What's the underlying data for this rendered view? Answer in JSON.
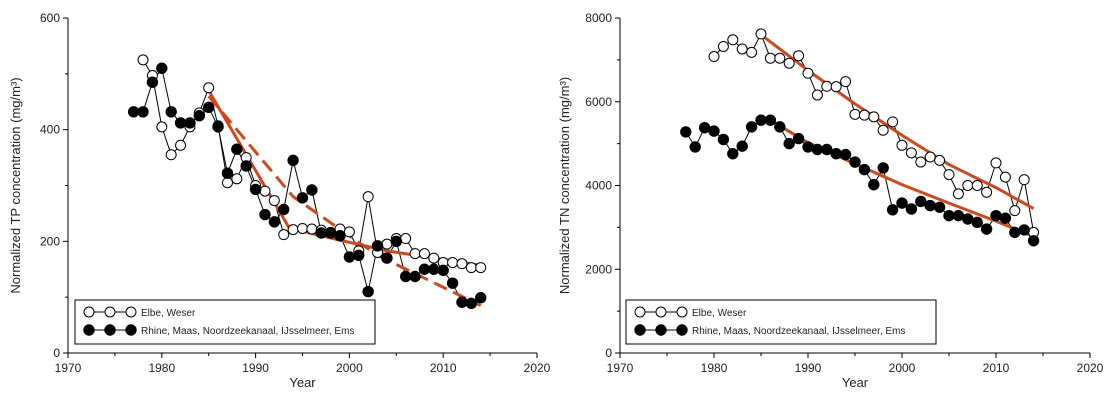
{
  "colors": {
    "trend": "#d2481a",
    "marker_filled": "#000000",
    "marker_open_fill": "#ffffff",
    "axis": "#000000"
  },
  "chart_data": [
    {
      "type": "scatter",
      "title": "",
      "xlabel": "Year",
      "ylabel": "Normalized TP concentration (mg/m³)",
      "xlim": [
        1970,
        2020
      ],
      "ylim": [
        0,
        600
      ],
      "xticks": [
        1970,
        1980,
        1990,
        2000,
        2010,
        2020
      ],
      "yticks": [
        0,
        200,
        400,
        600
      ],
      "legend_position": "bottom-left",
      "series": [
        {
          "name": "Elbe, Weser",
          "marker": "open-circle",
          "x": [
            1978,
            1979,
            1980,
            1981,
            1982,
            1983,
            1984,
            1985,
            1986,
            1987,
            1988,
            1989,
            1990,
            1991,
            1992,
            1993,
            1994,
            1995,
            1996,
            1997,
            1998,
            1999,
            2000,
            2001,
            2002,
            2003,
            2004,
            2005,
            2006,
            2007,
            2008,
            2009,
            2010,
            2011,
            2012,
            2013,
            2014
          ],
          "y": [
            525,
            497,
            405,
            355,
            372,
            405,
            430,
            475,
            407,
            305,
            312,
            350,
            300,
            290,
            273,
            212,
            221,
            223,
            222,
            220,
            216,
            222,
            217,
            183,
            280,
            180,
            195,
            205,
            205,
            178,
            178,
            170,
            162,
            162,
            160,
            153,
            153
          ]
        },
        {
          "name": "Rhine, Maas, Noordzeekanaal, IJsselmeer, Ems",
          "marker": "filled-circle",
          "x": [
            1977,
            1978,
            1979,
            1980,
            1981,
            1982,
            1983,
            1984,
            1985,
            1986,
            1987,
            1988,
            1989,
            1990,
            1991,
            1992,
            1993,
            1994,
            1995,
            1996,
            1997,
            1998,
            1999,
            2000,
            2001,
            2002,
            2003,
            2004,
            2005,
            2006,
            2007,
            2008,
            2009,
            2010,
            2011,
            2012,
            2013,
            2014
          ],
          "y": [
            432,
            432,
            485,
            510,
            432,
            412,
            412,
            425,
            440,
            405,
            322,
            365,
            335,
            293,
            248,
            235,
            257,
            345,
            278,
            292,
            215,
            215,
            210,
            172,
            175,
            110,
            192,
            170,
            200,
            137,
            137,
            150,
            150,
            148,
            125,
            91,
            89,
            99
          ]
        }
      ],
      "trend_lines": [
        {
          "style": "solid",
          "x": [
            1985,
            1994
          ],
          "y": [
            470,
            212
          ]
        },
        {
          "style": "dashed",
          "x": [
            1985,
            1994,
            2003
          ],
          "y": [
            460,
            280,
            175
          ]
        },
        {
          "style": "solid",
          "x": [
            1994,
            1999,
            2004,
            2009,
            2014
          ],
          "y": [
            222,
            202,
            183,
            170,
            157
          ]
        },
        {
          "style": "dashed",
          "x": [
            2003,
            2014
          ],
          "y": [
            175,
            85
          ]
        }
      ]
    },
    {
      "type": "scatter",
      "title": "",
      "xlabel": "Year",
      "ylabel": "Normalized TN concentration (mg/m³)",
      "xlim": [
        1970,
        2020
      ],
      "ylim": [
        0,
        8000
      ],
      "xticks": [
        1970,
        1980,
        1990,
        2000,
        2010,
        2020
      ],
      "yticks": [
        0,
        2000,
        4000,
        6000,
        8000
      ],
      "legend_position": "bottom-left",
      "series": [
        {
          "name": "Elbe, Weser",
          "marker": "open-circle",
          "x": [
            1980,
            1981,
            1982,
            1983,
            1984,
            1985,
            1986,
            1987,
            1988,
            1989,
            1990,
            1991,
            1992,
            1993,
            1994,
            1995,
            1996,
            1997,
            1998,
            1999,
            2000,
            2001,
            2002,
            2003,
            2004,
            2005,
            2006,
            2007,
            2008,
            2009,
            2010,
            2011,
            2012,
            2013,
            2014
          ],
          "y": [
            7080,
            7320,
            7480,
            7260,
            7180,
            7620,
            7040,
            7040,
            6920,
            7100,
            6680,
            6160,
            6370,
            6360,
            6480,
            5700,
            5680,
            5640,
            5320,
            5520,
            4960,
            4780,
            4560,
            4680,
            4600,
            4260,
            3800,
            4000,
            4000,
            3840,
            4540,
            4200,
            3400,
            4140,
            2880
          ]
        },
        {
          "name": "Rhine, Maas, Noordzeekanaal, IJsselmeer, Ems",
          "marker": "filled-circle",
          "x": [
            1977,
            1978,
            1979,
            1980,
            1981,
            1982,
            1983,
            1984,
            1985,
            1986,
            1987,
            1988,
            1989,
            1990,
            1991,
            1992,
            1993,
            1994,
            1995,
            1996,
            1997,
            1998,
            1999,
            2000,
            2001,
            2002,
            2003,
            2004,
            2005,
            2006,
            2007,
            2008,
            2009,
            2010,
            2011,
            2012,
            2013,
            2014
          ],
          "y": [
            5280,
            4920,
            5380,
            5300,
            5100,
            4760,
            4940,
            5400,
            5560,
            5560,
            5400,
            5000,
            5120,
            4920,
            4860,
            4860,
            4760,
            4740,
            4560,
            4380,
            4020,
            4420,
            3420,
            3580,
            3440,
            3620,
            3520,
            3480,
            3280,
            3280,
            3200,
            3120,
            2960,
            3280,
            3220,
            2880,
            2940,
            2680
          ]
        }
      ],
      "trend_lines": [
        {
          "style": "solid",
          "x": [
            1985,
            1990,
            1995,
            2000,
            2005,
            2010,
            2014
          ],
          "y": [
            7600,
            6750,
            5950,
            5200,
            4500,
            3950,
            3450
          ]
        },
        {
          "style": "solid",
          "x": [
            1986,
            1990,
            1995,
            2000,
            2005,
            2010,
            2014
          ],
          "y": [
            5560,
            5020,
            4520,
            4020,
            3580,
            3150,
            2780
          ]
        }
      ]
    }
  ]
}
